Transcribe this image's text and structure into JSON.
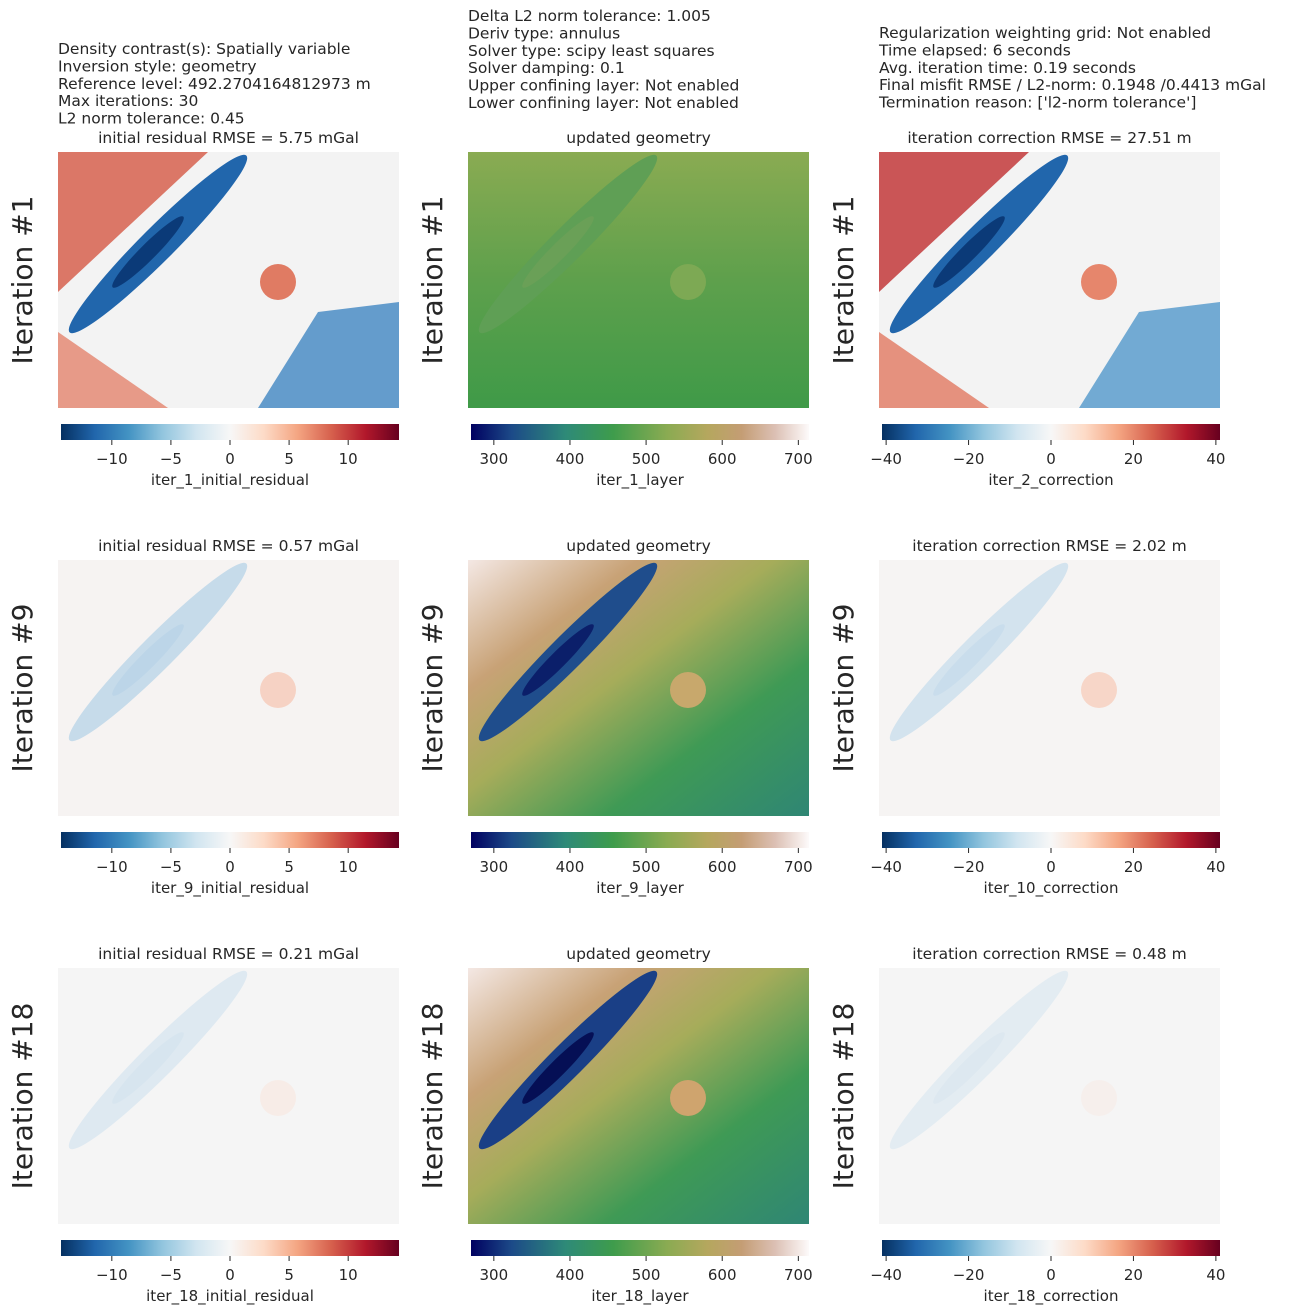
{
  "text_blocks": [
    [
      "Density contrast(s): Spatially variable",
      "Inversion style: geometry",
      "Reference level: 492.2704164812973 m",
      "Max iterations: 30",
      "L2 norm tolerance: 0.45"
    ],
    [
      "Delta L2 norm tolerance: 1.005",
      "Deriv type: annulus",
      "Solver type: scipy least squares",
      "Solver damping: 0.1",
      "Upper confining layer: Not enabled",
      "Lower confining layer: Not enabled"
    ],
    [
      "Regularization weighting grid: Not enabled",
      "Time elapsed: 6 seconds",
      "Avg. iteration time: 0.19 seconds",
      "Final misfit RMSE / L2-norm: 0.1948 /0.4413 mGal",
      "Termination reason: ['l2-norm tolerance']"
    ]
  ],
  "chart_data": [
    {
      "type": "heatmap",
      "title": "initial residual RMSE = 5.75 mGal",
      "ylabel": "Iteration #1",
      "colorbar": {
        "label": "iter_1_initial_residual",
        "cmap": "RdBu_r",
        "lim": [
          -14.3,
          14.3
        ],
        "ticks": [
          {
            "value": -10,
            "label": "−10"
          },
          {
            "value": -5,
            "label": "−5"
          },
          0,
          5,
          10
        ]
      }
    },
    {
      "type": "heatmap",
      "title": "updated geometry",
      "ylabel": "Iteration #1",
      "colorbar": {
        "label": "iter_1_layer",
        "cmap": "gist_earth",
        "lim": [
          270,
          714
        ],
        "ticks": [
          300,
          400,
          500,
          600,
          700
        ]
      }
    },
    {
      "type": "heatmap",
      "title": "iteration correction RMSE = 27.51 m",
      "ylabel": "Iteration #1",
      "colorbar": {
        "label": "iter_2_correction",
        "cmap": "RdBu_r",
        "lim": [
          -41,
          41
        ],
        "ticks": [
          {
            "value": -40,
            "label": "−40"
          },
          {
            "value": -20,
            "label": "−20"
          },
          0,
          20,
          40
        ]
      }
    },
    {
      "type": "heatmap",
      "title": "initial residual RMSE = 0.57 mGal",
      "ylabel": "Iteration #9",
      "colorbar": {
        "label": "iter_9_initial_residual",
        "cmap": "RdBu_r",
        "lim": [
          -14.3,
          14.3
        ],
        "ticks": [
          {
            "value": -10,
            "label": "−10"
          },
          {
            "value": -5,
            "label": "−5"
          },
          0,
          5,
          10
        ]
      }
    },
    {
      "type": "heatmap",
      "title": "updated geometry",
      "ylabel": "Iteration #9",
      "colorbar": {
        "label": "iter_9_layer",
        "cmap": "gist_earth",
        "lim": [
          270,
          714
        ],
        "ticks": [
          300,
          400,
          500,
          600,
          700
        ]
      }
    },
    {
      "type": "heatmap",
      "title": "iteration correction RMSE = 2.02 m",
      "ylabel": "Iteration #9",
      "colorbar": {
        "label": "iter_10_correction",
        "cmap": "RdBu_r",
        "lim": [
          -41,
          41
        ],
        "ticks": [
          {
            "value": -40,
            "label": "−40"
          },
          {
            "value": -20,
            "label": "−20"
          },
          0,
          20,
          40
        ]
      }
    },
    {
      "type": "heatmap",
      "title": "initial residual RMSE = 0.21 mGal",
      "ylabel": "Iteration #18",
      "colorbar": {
        "label": "iter_18_initial_residual",
        "cmap": "RdBu_r",
        "lim": [
          -14.3,
          14.3
        ],
        "ticks": [
          {
            "value": -10,
            "label": "−10"
          },
          {
            "value": -5,
            "label": "−5"
          },
          0,
          5,
          10
        ]
      }
    },
    {
      "type": "heatmap",
      "title": "updated geometry",
      "ylabel": "Iteration #18",
      "colorbar": {
        "label": "iter_18_layer",
        "cmap": "gist_earth",
        "lim": [
          270,
          714
        ],
        "ticks": [
          300,
          400,
          500,
          600,
          700
        ]
      }
    },
    {
      "type": "heatmap",
      "title": "iteration correction RMSE = 0.48 m",
      "ylabel": "Iteration #18",
      "colorbar": {
        "label": "iter_18_correction",
        "cmap": "RdBu_r",
        "lim": [
          -41,
          41
        ],
        "ticks": [
          {
            "value": -40,
            "label": "−40"
          },
          {
            "value": -20,
            "label": "−20"
          },
          0,
          20,
          40
        ]
      }
    }
  ]
}
